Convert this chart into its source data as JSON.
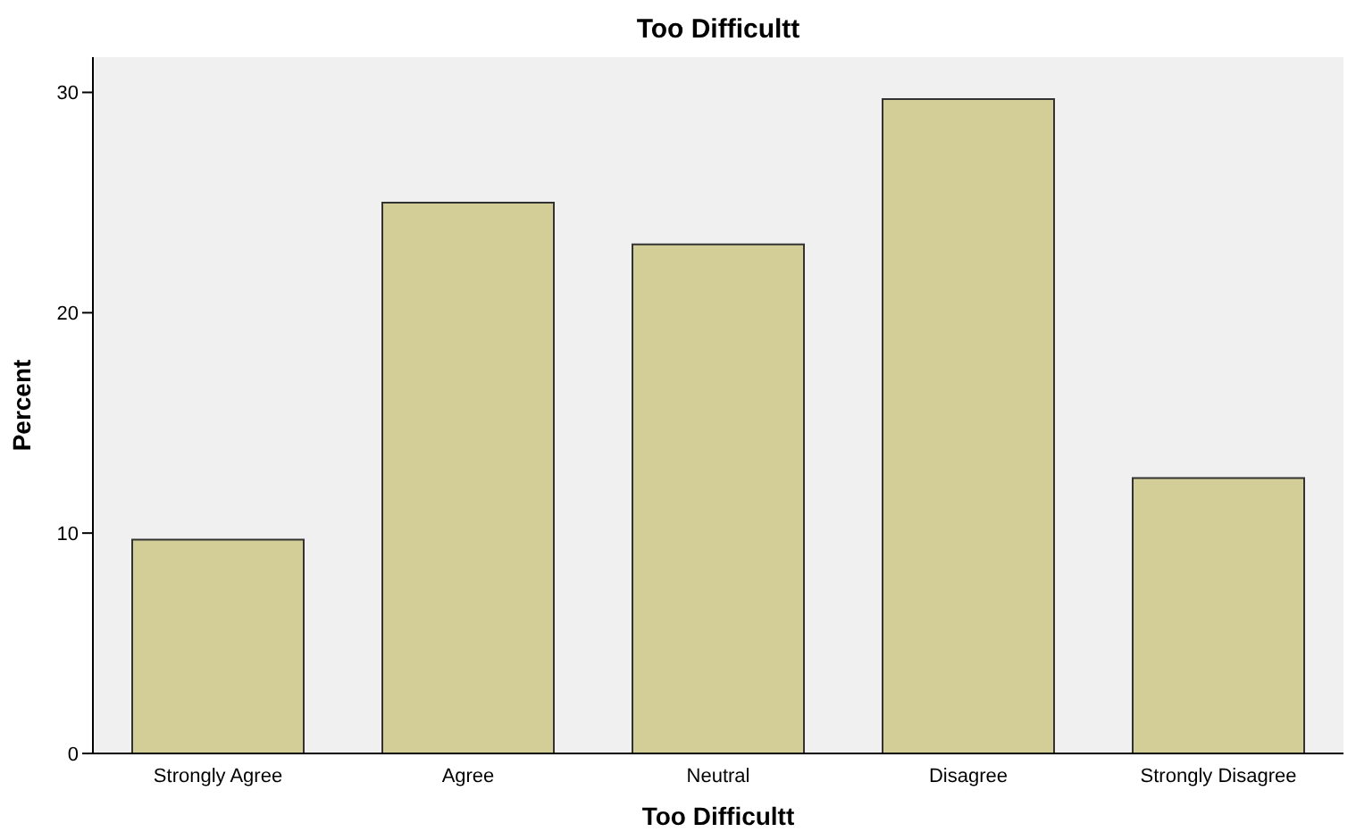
{
  "chart_data": {
    "type": "bar",
    "title": "Too Difficultt",
    "xlabel": "Too Difficultt",
    "ylabel": "Percent",
    "categories": [
      "Strongly Agree",
      "Agree",
      "Neutral",
      "Disagree",
      "Strongly Disagree"
    ],
    "values": [
      9.7,
      25.0,
      23.1,
      29.7,
      12.5
    ],
    "color": "#d3ce97",
    "ylim": [
      0,
      31.6
    ],
    "yticks": [
      0,
      10,
      20,
      30
    ],
    "grid": false,
    "legend": false
  }
}
